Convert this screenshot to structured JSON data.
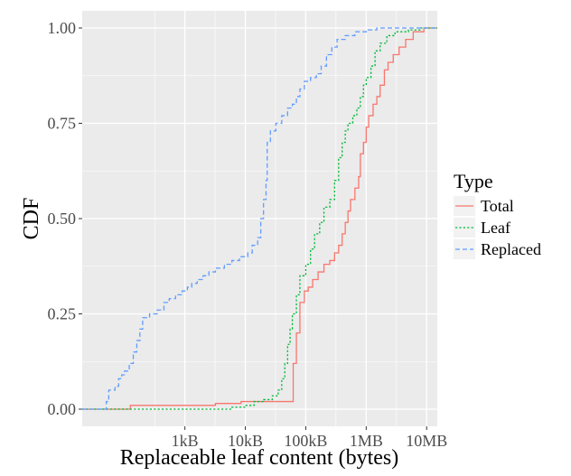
{
  "chart_data": {
    "type": "line",
    "title": "",
    "xlabel": "Replaceable leaf content (bytes)",
    "ylabel": "CDF",
    "x_scale": "log10",
    "x_unit": "bytes",
    "xlim": [
      20,
      15000000
    ],
    "ylim": [
      0,
      1
    ],
    "x_ticks": [
      {
        "value": 1000,
        "label": "1kB"
      },
      {
        "value": 10000,
        "label": "10kB"
      },
      {
        "value": 100000,
        "label": "100kB"
      },
      {
        "value": 1000000,
        "label": "1MB"
      },
      {
        "value": 10000000,
        "label": "10MB"
      }
    ],
    "y_ticks": [
      {
        "value": 0,
        "label": "0.00"
      },
      {
        "value": 0.25,
        "label": "0.25"
      },
      {
        "value": 0.5,
        "label": "0.50"
      },
      {
        "value": 0.75,
        "label": "0.75"
      },
      {
        "value": 1,
        "label": "1.00"
      }
    ],
    "grid": true,
    "background": "#ebebeb",
    "legend": {
      "title": "Type",
      "position": "right"
    },
    "series": [
      {
        "name": "Total",
        "color": "#f8766d",
        "dash": "solid",
        "points": [
          [
            20,
            0
          ],
          [
            120,
            0
          ],
          [
            125,
            0.01
          ],
          [
            3000,
            0.01
          ],
          [
            3200,
            0.015
          ],
          [
            8000,
            0.015
          ],
          [
            8500,
            0.02
          ],
          [
            60000,
            0.02
          ],
          [
            62000,
            0.12
          ],
          [
            70000,
            0.2
          ],
          [
            80000,
            0.28
          ],
          [
            95000,
            0.31
          ],
          [
            110000,
            0.32
          ],
          [
            130000,
            0.34
          ],
          [
            160000,
            0.36
          ],
          [
            200000,
            0.38
          ],
          [
            250000,
            0.39
          ],
          [
            300000,
            0.41
          ],
          [
            350000,
            0.43
          ],
          [
            400000,
            0.46
          ],
          [
            450000,
            0.49
          ],
          [
            500000,
            0.52
          ],
          [
            550000,
            0.55
          ],
          [
            650000,
            0.58
          ],
          [
            750000,
            0.61
          ],
          [
            800000,
            0.67
          ],
          [
            900000,
            0.7
          ],
          [
            1000000,
            0.74
          ],
          [
            1100000,
            0.77
          ],
          [
            1300000,
            0.8
          ],
          [
            1500000,
            0.82
          ],
          [
            1700000,
            0.85
          ],
          [
            2000000,
            0.89
          ],
          [
            2300000,
            0.91
          ],
          [
            2800000,
            0.93
          ],
          [
            3500000,
            0.95
          ],
          [
            4500000,
            0.97
          ],
          [
            6000000,
            0.99
          ],
          [
            9000000,
            1
          ],
          [
            15000000,
            1
          ]
        ]
      },
      {
        "name": "Leaf",
        "color": "#00ba38",
        "dash": "dotted",
        "points": [
          [
            20,
            0
          ],
          [
            5000,
            0
          ],
          [
            6000,
            0.005
          ],
          [
            10000,
            0.01
          ],
          [
            14000,
            0.02
          ],
          [
            20000,
            0.025
          ],
          [
            28000,
            0.035
          ],
          [
            35000,
            0.05
          ],
          [
            40000,
            0.08
          ],
          [
            45000,
            0.12
          ],
          [
            50000,
            0.17
          ],
          [
            55000,
            0.21
          ],
          [
            60000,
            0.25
          ],
          [
            70000,
            0.3
          ],
          [
            80000,
            0.35
          ],
          [
            100000,
            0.38
          ],
          [
            120000,
            0.42
          ],
          [
            140000,
            0.46
          ],
          [
            170000,
            0.49
          ],
          [
            200000,
            0.53
          ],
          [
            250000,
            0.55
          ],
          [
            300000,
            0.6
          ],
          [
            350000,
            0.66
          ],
          [
            400000,
            0.7
          ],
          [
            450000,
            0.73
          ],
          [
            500000,
            0.75
          ],
          [
            600000,
            0.77
          ],
          [
            700000,
            0.79
          ],
          [
            800000,
            0.82
          ],
          [
            900000,
            0.85
          ],
          [
            1000000,
            0.87
          ],
          [
            1200000,
            0.9
          ],
          [
            1400000,
            0.94
          ],
          [
            1700000,
            0.96
          ],
          [
            2200000,
            0.98
          ],
          [
            3000000,
            0.99
          ],
          [
            5000000,
            0.995
          ],
          [
            8000000,
            1
          ],
          [
            15000000,
            1
          ]
        ]
      },
      {
        "name": "Replaced",
        "color": "#619cff",
        "dash": "dashed",
        "points": [
          [
            20,
            0
          ],
          [
            45,
            0
          ],
          [
            50,
            0.02
          ],
          [
            55,
            0.05
          ],
          [
            70,
            0.06
          ],
          [
            80,
            0.08
          ],
          [
            90,
            0.09
          ],
          [
            100,
            0.1
          ],
          [
            120,
            0.12
          ],
          [
            140,
            0.15
          ],
          [
            160,
            0.18
          ],
          [
            180,
            0.21
          ],
          [
            200,
            0.24
          ],
          [
            260,
            0.25
          ],
          [
            350,
            0.26
          ],
          [
            450,
            0.28
          ],
          [
            550,
            0.29
          ],
          [
            700,
            0.3
          ],
          [
            900,
            0.31
          ],
          [
            1100,
            0.32
          ],
          [
            1300,
            0.33
          ],
          [
            1600,
            0.34
          ],
          [
            2000,
            0.35
          ],
          [
            2500,
            0.36
          ],
          [
            3200,
            0.37
          ],
          [
            4500,
            0.38
          ],
          [
            6000,
            0.39
          ],
          [
            8000,
            0.4
          ],
          [
            11000,
            0.41
          ],
          [
            13000,
            0.43
          ],
          [
            16000,
            0.45
          ],
          [
            18000,
            0.5
          ],
          [
            20000,
            0.55
          ],
          [
            22000,
            0.6
          ],
          [
            23000,
            0.7
          ],
          [
            26000,
            0.73
          ],
          [
            32000,
            0.75
          ],
          [
            40000,
            0.77
          ],
          [
            50000,
            0.79
          ],
          [
            60000,
            0.8
          ],
          [
            70000,
            0.82
          ],
          [
            80000,
            0.84
          ],
          [
            95000,
            0.86
          ],
          [
            120000,
            0.87
          ],
          [
            150000,
            0.88
          ],
          [
            180000,
            0.9
          ],
          [
            220000,
            0.93
          ],
          [
            270000,
            0.95
          ],
          [
            330000,
            0.97
          ],
          [
            450000,
            0.98
          ],
          [
            650000,
            0.99
          ],
          [
            1000000,
            0.995
          ],
          [
            1500000,
            1
          ],
          [
            15000000,
            1
          ]
        ]
      }
    ]
  }
}
